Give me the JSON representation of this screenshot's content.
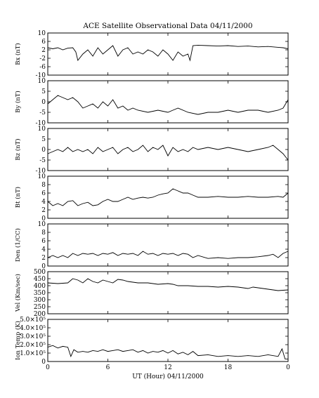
{
  "title": "ACE Satellite Observational Data   04/11/2000",
  "xlabel": "UT (Hour)   04/11/2000",
  "chart_data": [
    {
      "type": "line",
      "ylabel": "Bx (nT)",
      "ylim": [
        -10,
        10
      ],
      "yticks": [
        "10",
        "6",
        "2",
        "-2",
        "-6",
        "-10"
      ],
      "ytick_values": [
        10,
        6,
        2,
        -2,
        -6,
        -10
      ],
      "xlim": [
        0,
        24
      ],
      "x": [
        0,
        0.5,
        1,
        1.5,
        2,
        2.5,
        2.8,
        3,
        3.5,
        4,
        4.5,
        5,
        5.5,
        6,
        6.5,
        7,
        7.5,
        8,
        8.5,
        9,
        9.5,
        10,
        10.5,
        11,
        11.5,
        12,
        12.5,
        13,
        13.5,
        14,
        14.2,
        14.5,
        15,
        16,
        17,
        18,
        19,
        20,
        21,
        22,
        23,
        23.5,
        24
      ],
      "values": [
        3,
        2.5,
        3,
        2,
        2.8,
        3,
        1,
        -3,
        0,
        2,
        -1,
        3,
        0,
        2,
        4,
        -1,
        2,
        3,
        0,
        1,
        0,
        2,
        1,
        -1,
        2,
        0,
        -3,
        1,
        -1,
        0,
        -3,
        4,
        4.2,
        4,
        3.8,
        4,
        3.6,
        3.8,
        3.4,
        3.6,
        3.2,
        3,
        2.5
      ]
    },
    {
      "type": "line",
      "ylabel": "By (nT)",
      "ylim": [
        -10,
        10
      ],
      "yticks": [
        "10",
        "5",
        "0",
        "-5",
        "-10"
      ],
      "ytick_values": [
        10,
        5,
        0,
        -5,
        -10
      ],
      "xlim": [
        0,
        24
      ],
      "x": [
        0,
        0.5,
        1,
        1.5,
        2,
        2.5,
        3,
        3.5,
        4,
        4.5,
        5,
        5.5,
        6,
        6.5,
        7,
        7.5,
        8,
        8.5,
        9,
        10,
        11,
        12,
        12.5,
        13,
        14,
        15,
        16,
        17,
        18,
        19,
        20,
        21,
        22,
        23,
        23.5,
        24
      ],
      "values": [
        -1,
        1,
        3,
        2,
        1,
        2,
        0,
        -3,
        -2,
        -1,
        -3,
        0,
        -2,
        1,
        -3,
        -2,
        -4,
        -3,
        -4,
        -5,
        -4,
        -5,
        -4,
        -3,
        -5,
        -6,
        -5,
        -5,
        -4,
        -5,
        -4,
        -4,
        -5,
        -4,
        -3,
        1
      ]
    },
    {
      "type": "line",
      "ylabel": "Bz (nT)",
      "ylim": [
        -10,
        10
      ],
      "yticks": [
        "10",
        "5",
        "0",
        "-5",
        "-10"
      ],
      "ytick_values": [
        10,
        5,
        0,
        -5,
        -10
      ],
      "xlim": [
        0,
        24
      ],
      "x": [
        0,
        0.5,
        1,
        1.5,
        2,
        2.5,
        3,
        3.5,
        4,
        4.5,
        5,
        5.5,
        6,
        6.5,
        7,
        7.5,
        8,
        8.5,
        9,
        9.5,
        10,
        10.5,
        11,
        11.5,
        12,
        12.5,
        13,
        13.5,
        14,
        14.5,
        15,
        16,
        17,
        18,
        19,
        20,
        21,
        22,
        22.5,
        23,
        23.5,
        24
      ],
      "values": [
        -2,
        -1,
        0,
        -1,
        1,
        -1,
        0,
        -1,
        0,
        -2,
        1,
        -1,
        0,
        1,
        -2,
        0,
        1,
        -1,
        0,
        2,
        -1,
        1,
        0,
        2,
        -3,
        1,
        -1,
        0,
        -1,
        1,
        0,
        1,
        0,
        1,
        0,
        -1,
        0,
        1,
        2,
        0,
        -2,
        -5
      ]
    },
    {
      "type": "line",
      "ylabel": "Bt (nT)",
      "ylim": [
        0,
        10
      ],
      "yticks": [
        "10",
        "8",
        "6",
        "4",
        "2",
        "0"
      ],
      "ytick_values": [
        10,
        8,
        6,
        4,
        2,
        0
      ],
      "xlim": [
        0,
        24
      ],
      "x": [
        0,
        0.5,
        1,
        1.5,
        2,
        2.5,
        3,
        3.5,
        4,
        4.5,
        5,
        5.5,
        6,
        6.5,
        7,
        7.5,
        8,
        8.5,
        9,
        9.5,
        10,
        10.5,
        11,
        11.5,
        12,
        12.5,
        13,
        13.5,
        14,
        14.5,
        15,
        16,
        17,
        18,
        19,
        20,
        21,
        22,
        23,
        23.5,
        24
      ],
      "values": [
        4,
        3,
        3.5,
        3,
        4,
        4.2,
        3,
        3.5,
        3.8,
        3,
        3.2,
        4,
        4.5,
        4,
        4,
        4.5,
        5,
        4.5,
        4.8,
        5,
        4.8,
        5,
        5.5,
        5.8,
        6,
        7,
        6.5,
        6,
        6,
        5.5,
        5,
        5,
        5.2,
        5,
        5,
        5.2,
        5,
        5,
        5.2,
        5,
        6
      ]
    },
    {
      "type": "line",
      "ylabel": "Den (1/CC)",
      "ylim": [
        0,
        10
      ],
      "yticks": [
        "10",
        "8",
        "6",
        "4",
        "2",
        "0"
      ],
      "ytick_values": [
        10,
        8,
        6,
        4,
        2,
        0
      ],
      "xlim": [
        0,
        24
      ],
      "x": [
        0,
        0.5,
        1,
        1.5,
        2,
        2.5,
        3,
        3.5,
        4,
        4.5,
        5,
        5.5,
        6,
        6.5,
        7,
        7.5,
        8,
        8.5,
        9,
        9.5,
        10,
        10.5,
        11,
        11.5,
        12,
        12.5,
        13,
        13.5,
        14,
        14.5,
        15,
        16,
        17,
        18,
        19,
        20,
        21,
        22,
        22.5,
        23,
        23.5,
        24
      ],
      "values": [
        2,
        2.5,
        2,
        2.5,
        2,
        3,
        2.5,
        3,
        2.8,
        3,
        2.5,
        3,
        2.8,
        3.2,
        2.5,
        3,
        2.8,
        3,
        2.5,
        3.5,
        2.8,
        3,
        2.5,
        3,
        2.8,
        3,
        2.5,
        3,
        2.8,
        2,
        2.5,
        1.8,
        2,
        1.8,
        2,
        2,
        2.2,
        2.5,
        2.8,
        2,
        3,
        3.5
      ]
    },
    {
      "type": "line",
      "ylabel": "Vel (Km/sec)",
      "ylim": [
        200,
        500
      ],
      "yticks": [
        "500",
        "450",
        "400",
        "350",
        "300",
        "250",
        "200"
      ],
      "ytick_values": [
        500,
        450,
        400,
        350,
        300,
        250,
        200
      ],
      "xlim": [
        0,
        24
      ],
      "x": [
        0,
        1,
        2,
        2.5,
        3,
        3.5,
        4,
        4.5,
        5,
        5.5,
        6,
        6.5,
        7,
        7.5,
        8,
        8.5,
        9,
        10,
        11,
        12,
        12.5,
        13,
        14,
        15,
        16,
        17,
        18,
        19,
        20,
        20.5,
        21,
        22,
        23,
        24
      ],
      "values": [
        420,
        415,
        420,
        450,
        440,
        420,
        450,
        430,
        420,
        440,
        430,
        420,
        445,
        440,
        430,
        425,
        420,
        420,
        410,
        415,
        410,
        400,
        400,
        395,
        395,
        390,
        395,
        390,
        380,
        390,
        385,
        375,
        365,
        370
      ]
    },
    {
      "type": "line",
      "ylabel": "Ion Temp (K)",
      "ylim": [
        0,
        500000
      ],
      "yticks": [
        "5.0×10⁵",
        "4.0×10⁵",
        "3.0×10⁵",
        "2.0×10⁵",
        "1.0×10⁵",
        "0"
      ],
      "ytick_values": [
        500000,
        400000,
        300000,
        200000,
        100000,
        0
      ],
      "xlim": [
        0,
        24
      ],
      "x": [
        0,
        0.5,
        1,
        1.5,
        2,
        2.3,
        2.6,
        3,
        3.5,
        4,
        4.5,
        5,
        5.5,
        6,
        6.5,
        7,
        7.5,
        8,
        8.5,
        9,
        9.5,
        10,
        10.5,
        11,
        11.5,
        12,
        12.5,
        13,
        13.5,
        14,
        14.5,
        15,
        16,
        17,
        18,
        19,
        20,
        21,
        22,
        23,
        23.4,
        23.7,
        24
      ],
      "values": [
        170000,
        190000,
        160000,
        180000,
        170000,
        60000,
        140000,
        110000,
        120000,
        110000,
        130000,
        120000,
        140000,
        120000,
        130000,
        140000,
        120000,
        130000,
        140000,
        110000,
        130000,
        100000,
        120000,
        110000,
        130000,
        100000,
        130000,
        90000,
        110000,
        80000,
        120000,
        70000,
        80000,
        60000,
        70000,
        60000,
        70000,
        60000,
        80000,
        60000,
        150000,
        30000,
        30000
      ]
    }
  ],
  "xticks": [
    "0",
    "6",
    "12",
    "18",
    "0"
  ],
  "xtick_values": [
    0,
    6,
    12,
    18,
    24
  ]
}
